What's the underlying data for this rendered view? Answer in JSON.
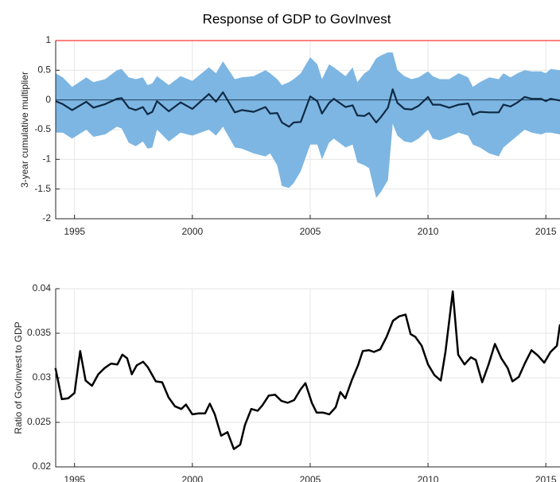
{
  "chart_data": [
    {
      "type": "band-line",
      "title": "Response of GDP to GovInvest",
      "ylabel": "3-year cumulative multiplier",
      "x": [
        1994.2,
        1994.5,
        1994.9,
        1995.5,
        1995.8,
        1996.3,
        1996.8,
        1997.0,
        1997.3,
        1997.6,
        1997.9,
        1998.1,
        1998.3,
        1998.5,
        1999.0,
        1999.5,
        2000.0,
        2000.7,
        2001.0,
        2001.3,
        2001.8,
        2002.1,
        2002.6,
        2003.1,
        2003.3,
        2003.6,
        2003.8,
        2004.1,
        2004.3,
        2004.6,
        2005.0,
        2005.3,
        2005.5,
        2005.8,
        2006.0,
        2006.5,
        2006.8,
        2007.0,
        2007.3,
        2007.5,
        2007.8,
        2008.0,
        2008.3,
        2008.5,
        2008.7,
        2009.0,
        2009.3,
        2009.6,
        2010.0,
        2010.2,
        2010.5,
        2010.9,
        2011.3,
        2011.7,
        2011.9,
        2012.2,
        2012.6,
        2013.0,
        2013.2,
        2013.5,
        2013.8,
        2014.1,
        2014.4,
        2014.8,
        2015.0,
        2015.2,
        2015.6
      ],
      "series": [
        {
          "color": "#0f2a45",
          "values": [
            -0.02,
            -0.07,
            -0.17,
            -0.03,
            -0.13,
            -0.07,
            0.02,
            0.03,
            -0.13,
            -0.17,
            -0.12,
            -0.24,
            -0.2,
            -0.02,
            -0.19,
            -0.04,
            -0.15,
            0.1,
            -0.03,
            0.13,
            -0.21,
            -0.17,
            -0.2,
            -0.12,
            -0.23,
            -0.22,
            -0.38,
            -0.45,
            -0.38,
            -0.37,
            0.06,
            -0.02,
            -0.23,
            -0.05,
            0.02,
            -0.12,
            -0.09,
            -0.26,
            -0.27,
            -0.22,
            -0.38,
            -0.29,
            -0.13,
            0.18,
            -0.05,
            -0.15,
            -0.16,
            -0.1,
            0.05,
            -0.08,
            -0.08,
            -0.13,
            -0.08,
            -0.06,
            -0.25,
            -0.2,
            -0.21,
            -0.21,
            -0.08,
            -0.11,
            -0.04,
            0.05,
            0.02,
            0.02,
            -0.02,
            0.02,
            -0.01
          ]
        }
      ],
      "band": {
        "color": "#7db6e2",
        "upper": [
          0.45,
          0.38,
          0.22,
          0.38,
          0.3,
          0.35,
          0.5,
          0.52,
          0.38,
          0.35,
          0.38,
          0.25,
          0.28,
          0.4,
          0.25,
          0.4,
          0.32,
          0.55,
          0.45,
          0.65,
          0.35,
          0.38,
          0.4,
          0.5,
          0.45,
          0.35,
          0.25,
          0.3,
          0.35,
          0.45,
          0.72,
          0.6,
          0.35,
          0.6,
          0.55,
          0.4,
          0.55,
          0.3,
          0.45,
          0.5,
          0.7,
          0.75,
          0.8,
          0.8,
          0.5,
          0.4,
          0.35,
          0.38,
          0.48,
          0.4,
          0.35,
          0.35,
          0.45,
          0.38,
          0.22,
          0.3,
          0.38,
          0.35,
          0.45,
          0.38,
          0.45,
          0.5,
          0.48,
          0.48,
          0.45,
          0.52,
          0.5
        ],
        "lower": [
          -0.55,
          -0.55,
          -0.65,
          -0.5,
          -0.62,
          -0.58,
          -0.45,
          -0.48,
          -0.72,
          -0.78,
          -0.7,
          -0.82,
          -0.8,
          -0.5,
          -0.7,
          -0.55,
          -0.6,
          -0.5,
          -0.6,
          -0.45,
          -0.8,
          -0.82,
          -0.9,
          -0.95,
          -0.9,
          -1.1,
          -1.45,
          -1.48,
          -1.4,
          -1.2,
          -0.75,
          -0.75,
          -1.0,
          -0.72,
          -0.65,
          -0.8,
          -0.75,
          -1.05,
          -1.1,
          -1.15,
          -1.65,
          -1.55,
          -1.35,
          -0.4,
          -0.6,
          -0.7,
          -0.72,
          -0.65,
          -0.5,
          -0.65,
          -0.68,
          -0.62,
          -0.55,
          -0.6,
          -0.75,
          -0.8,
          -0.9,
          -0.95,
          -0.8,
          -0.7,
          -0.6,
          -0.5,
          -0.55,
          -0.58,
          -0.55,
          -0.55,
          -0.58
        ]
      },
      "hlines": [
        {
          "value": 1,
          "color": "#ff0000"
        },
        {
          "value": 0,
          "color": "#1f3a5a"
        }
      ],
      "xlim": [
        1994.2,
        2015.6
      ],
      "xticks": [
        1995,
        2000,
        2005,
        2010,
        2015
      ],
      "ylim": [
        -2,
        1
      ],
      "yticks": [
        -2,
        -1.5,
        -1,
        -0.5,
        0,
        0.5,
        1
      ],
      "grid": true
    },
    {
      "type": "line",
      "ylabel": "Ratio of GovInvest to GDP",
      "x": [
        1994.19,
        1994.46,
        1994.73,
        1995.0,
        1995.24,
        1995.47,
        1995.74,
        1996.01,
        1996.28,
        1996.55,
        1996.82,
        1997.03,
        1997.23,
        1997.43,
        1997.64,
        1997.91,
        1998.11,
        1998.45,
        1998.72,
        1998.99,
        1999.26,
        1999.53,
        1999.73,
        2000.0,
        2000.27,
        2000.54,
        2000.74,
        2000.95,
        2001.22,
        2001.49,
        2001.76,
        2002.03,
        2002.23,
        2002.5,
        2002.77,
        2002.97,
        2003.24,
        2003.51,
        2003.78,
        2004.05,
        2004.32,
        2004.59,
        2004.8,
        2005.07,
        2005.27,
        2005.54,
        2005.81,
        2006.08,
        2006.28,
        2006.49,
        2006.76,
        2007.03,
        2007.23,
        2007.5,
        2007.7,
        2007.97,
        2008.24,
        2008.51,
        2008.78,
        2009.05,
        2009.26,
        2009.46,
        2009.73,
        2010.0,
        2010.27,
        2010.54,
        2010.74,
        2011.05,
        2011.28,
        2011.55,
        2011.82,
        2012.03,
        2012.3,
        2012.57,
        2012.84,
        2013.11,
        2013.38,
        2013.58,
        2013.85,
        2014.12,
        2014.39,
        2014.66,
        2014.93,
        2015.2,
        2015.47,
        2015.6
      ],
      "series": [
        {
          "color": "#000000",
          "values": [
            0.0311,
            0.0276,
            0.0277,
            0.0283,
            0.033,
            0.0297,
            0.0291,
            0.0304,
            0.0311,
            0.0316,
            0.0315,
            0.0326,
            0.0322,
            0.0304,
            0.0314,
            0.0318,
            0.0312,
            0.0296,
            0.0295,
            0.0278,
            0.0268,
            0.0265,
            0.027,
            0.0259,
            0.026,
            0.026,
            0.0271,
            0.0259,
            0.0235,
            0.0239,
            0.022,
            0.0225,
            0.0247,
            0.0265,
            0.0263,
            0.0269,
            0.028,
            0.0281,
            0.0274,
            0.0272,
            0.0275,
            0.0287,
            0.0294,
            0.0272,
            0.0261,
            0.0261,
            0.0259,
            0.0267,
            0.0284,
            0.0277,
            0.0297,
            0.0314,
            0.033,
            0.0331,
            0.0329,
            0.0332,
            0.0346,
            0.0364,
            0.0369,
            0.0371,
            0.0349,
            0.0346,
            0.0336,
            0.0315,
            0.0303,
            0.0297,
            0.0329,
            0.0397,
            0.0326,
            0.0315,
            0.0323,
            0.032,
            0.0295,
            0.0315,
            0.0338,
            0.0322,
            0.0311,
            0.0296,
            0.0301,
            0.0317,
            0.0331,
            0.0325,
            0.0317,
            0.0329,
            0.0336,
            0.036
          ]
        }
      ],
      "xlim": [
        1994.2,
        2015.6
      ],
      "xticks": [
        1995,
        2000,
        2005,
        2010,
        2015
      ],
      "ylim": [
        0.02,
        0.04
      ],
      "yticks": [
        0.02,
        0.025,
        0.03,
        0.035,
        0.04
      ],
      "grid": true
    }
  ]
}
